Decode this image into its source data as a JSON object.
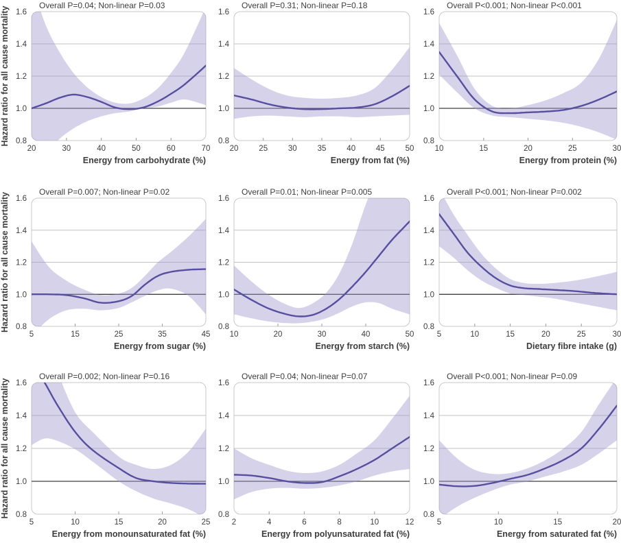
{
  "figure": {
    "y_axis_label": "Hazard ratio for all cause mortality",
    "y_range": [
      0.8,
      1.6
    ],
    "y_tick_labels": [
      "0.8",
      "1.0",
      "1.2",
      "1.4",
      "1.6"
    ],
    "gridlines": [
      1.2,
      1.4
    ],
    "reference_line": 1.0,
    "colors": {
      "band": "#9d94cd",
      "band_opacity": 0.42,
      "line": "#564fa0",
      "grid": "#c2c2c2",
      "reference": "#3f3f3f",
      "frame": "#c8c8c8",
      "tick_mark": "#9a9a9a",
      "text": "#3d3d3d",
      "label_text": "#2f2f2f"
    }
  },
  "chart_data": [
    {
      "type": "line",
      "title": "Overall P=0.04; Non-linear P=0.03",
      "xlabel": "Energy from carbohydrate (%)",
      "ylabel": "Hazard ratio for all cause mortality",
      "xlim": [
        20,
        70
      ],
      "ylim": [
        0.8,
        1.6
      ],
      "x_ticks": [
        20,
        30,
        40,
        50,
        60,
        70
      ],
      "x": [
        20,
        24,
        28,
        32,
        36,
        40,
        44,
        48,
        52,
        56,
        60,
        64,
        70
      ],
      "y": [
        1.0,
        1.03,
        1.065,
        1.085,
        1.07,
        1.04,
        1.005,
        0.995,
        1.005,
        1.04,
        1.09,
        1.15,
        1.265
      ],
      "ci_lower": [
        0.62,
        0.72,
        0.81,
        0.875,
        0.92,
        0.95,
        0.97,
        0.98,
        1.0,
        1.01,
        1.035,
        1.055,
        1.02
      ],
      "ci_upper": [
        1.78,
        1.52,
        1.35,
        1.22,
        1.13,
        1.07,
        1.035,
        1.03,
        1.06,
        1.12,
        1.22,
        1.35,
        1.63
      ]
    },
    {
      "type": "line",
      "title": "Overall P=0.31; Non-linear P=0.18",
      "xlabel": "Energy from fat (%)",
      "xlim": [
        20,
        50
      ],
      "ylim": [
        0.8,
        1.6
      ],
      "x_ticks": [
        20,
        25,
        30,
        35,
        40,
        45,
        50
      ],
      "x": [
        20,
        23,
        26,
        29,
        32,
        35,
        38,
        41,
        44,
        47,
        50
      ],
      "y": [
        1.08,
        1.055,
        1.025,
        1.005,
        0.995,
        0.995,
        1.0,
        1.005,
        1.025,
        1.075,
        1.14
      ],
      "ci_lower": [
        0.935,
        0.95,
        0.955,
        0.95,
        0.945,
        0.95,
        0.95,
        0.945,
        0.95,
        0.955,
        0.96
      ],
      "ci_upper": [
        1.25,
        1.18,
        1.12,
        1.08,
        1.065,
        1.06,
        1.065,
        1.08,
        1.125,
        1.24,
        1.38
      ]
    },
    {
      "type": "line",
      "title": "Overall P<0.001; Non-linear P<0.001",
      "xlabel": "Energy from protein (%)",
      "xlim": [
        10,
        30
      ],
      "ylim": [
        0.8,
        1.6
      ],
      "x_ticks": [
        10,
        15,
        20,
        25,
        30
      ],
      "x": [
        10,
        12,
        14,
        16,
        18,
        20,
        22,
        24,
        26,
        28,
        30
      ],
      "y": [
        1.35,
        1.2,
        1.055,
        0.98,
        0.97,
        0.975,
        0.98,
        0.99,
        1.015,
        1.055,
        1.105
      ],
      "ci_lower": [
        1.21,
        1.1,
        1.0,
        0.955,
        0.945,
        0.935,
        0.925,
        0.91,
        0.885,
        0.85,
        0.805
      ],
      "ci_upper": [
        1.53,
        1.33,
        1.12,
        1.015,
        1.0,
        1.02,
        1.05,
        1.095,
        1.16,
        1.31,
        1.55
      ]
    },
    {
      "type": "line",
      "title": "Overall P=0.007; Non-linear P=0.02",
      "xlabel": "Energy from sugar (%)",
      "ylabel": "Hazard ratio for all cause mortality",
      "xlim": [
        5,
        45
      ],
      "ylim": [
        0.8,
        1.6
      ],
      "x_ticks": [
        5,
        15,
        25,
        35,
        45
      ],
      "x": [
        5,
        9,
        13,
        17,
        21,
        25,
        28,
        31,
        34,
        37,
        41,
        45
      ],
      "y": [
        1.0,
        1.0,
        0.995,
        0.975,
        0.947,
        0.957,
        0.99,
        1.06,
        1.115,
        1.14,
        1.153,
        1.157
      ],
      "ci_lower": [
        0.74,
        0.845,
        0.9,
        0.91,
        0.9,
        0.915,
        0.95,
        0.99,
        1.025,
        1.035,
        0.99,
        0.875
      ],
      "ci_upper": [
        1.33,
        1.17,
        1.085,
        1.03,
        0.995,
        1.005,
        1.04,
        1.115,
        1.2,
        1.265,
        1.36,
        1.47
      ]
    },
    {
      "type": "line",
      "title": "Overall P=0.01; Non-linear P=0.005",
      "xlabel": "Energy from starch (%)",
      "xlim": [
        10,
        50
      ],
      "ylim": [
        0.8,
        1.6
      ],
      "x_ticks": [
        10,
        20,
        30,
        40,
        50
      ],
      "x": [
        10,
        14,
        18,
        22,
        25,
        28,
        31,
        34,
        37,
        40,
        43,
        46,
        50
      ],
      "y": [
        1.03,
        0.965,
        0.91,
        0.875,
        0.862,
        0.872,
        0.91,
        0.97,
        1.05,
        1.14,
        1.24,
        1.34,
        1.455
      ],
      "ci_lower": [
        0.875,
        0.85,
        0.83,
        0.82,
        0.82,
        0.83,
        0.85,
        0.885,
        0.925,
        0.95,
        0.945,
        0.91,
        0.875
      ],
      "ci_upper": [
        1.18,
        1.08,
        0.995,
        0.935,
        0.915,
        0.945,
        1.01,
        1.13,
        1.32,
        1.56,
        1.75,
        1.85,
        1.95
      ]
    },
    {
      "type": "line",
      "title": "Overall P<0.001; Non-linear P=0.002",
      "xlabel": "Dietary fibre intake (g)",
      "xlim": [
        5,
        30
      ],
      "ylim": [
        0.8,
        1.6
      ],
      "x_ticks": [
        5,
        10,
        15,
        20,
        25,
        30
      ],
      "x": [
        5,
        7,
        9,
        11,
        13,
        15,
        17,
        19,
        21,
        24,
        27,
        30
      ],
      "y": [
        1.5,
        1.38,
        1.26,
        1.17,
        1.1,
        1.055,
        1.038,
        1.033,
        1.028,
        1.02,
        1.008,
        1.0
      ],
      "ci_lower": [
        1.3,
        1.23,
        1.15,
        1.085,
        1.04,
        1.005,
        0.995,
        0.985,
        0.975,
        0.95,
        0.925,
        0.9
      ],
      "ci_upper": [
        1.66,
        1.5,
        1.37,
        1.25,
        1.16,
        1.095,
        1.07,
        1.065,
        1.07,
        1.085,
        1.11,
        1.14
      ]
    },
    {
      "type": "line",
      "title": "Overall P=0.002; Non-linear P=0.16",
      "xlabel": "Energy from monounsaturated fat (%)",
      "ylabel": "Hazard ratio for all cause mortality",
      "xlim": [
        5,
        25
      ],
      "ylim": [
        0.8,
        1.6
      ],
      "x_ticks": [
        5,
        10,
        15,
        20,
        25
      ],
      "x": [
        5,
        6.5,
        8,
        10,
        12,
        15,
        17,
        19,
        21,
        23,
        25
      ],
      "y": [
        1.73,
        1.6,
        1.46,
        1.3,
        1.19,
        1.08,
        1.02,
        1.0,
        0.99,
        0.986,
        0.985
      ],
      "ci_lower": [
        1.22,
        1.26,
        1.245,
        1.195,
        1.12,
        1.0,
        0.94,
        0.895,
        0.865,
        0.83,
        0.775
      ],
      "ci_upper": [
        2.05,
        1.88,
        1.66,
        1.42,
        1.3,
        1.15,
        1.1,
        1.075,
        1.1,
        1.18,
        1.32
      ]
    },
    {
      "type": "line",
      "title": "Overall P=0.04; Non-linear P=0.07",
      "xlabel": "Energy from polyunsaturated fat (%)",
      "xlim": [
        2,
        12
      ],
      "ylim": [
        0.8,
        1.6
      ],
      "x_ticks": [
        2,
        4,
        6,
        8,
        10,
        12
      ],
      "x": [
        2,
        3,
        4,
        5,
        6,
        7,
        8,
        9,
        10,
        11,
        12
      ],
      "y": [
        1.04,
        1.035,
        1.02,
        1.0,
        0.99,
        0.995,
        1.03,
        1.075,
        1.13,
        1.2,
        1.27
      ],
      "ci_lower": [
        0.89,
        0.935,
        0.955,
        0.96,
        0.955,
        0.96,
        0.975,
        1.0,
        1.035,
        1.06,
        1.075
      ],
      "ci_upper": [
        1.2,
        1.14,
        1.1,
        1.065,
        1.05,
        1.06,
        1.1,
        1.17,
        1.25,
        1.38,
        1.52
      ]
    },
    {
      "type": "line",
      "title": "Overall P<0.001; Non-linear P=0.09",
      "xlabel": "Energy from saturated fat (%)",
      "xlim": [
        5,
        20
      ],
      "ylim": [
        0.8,
        1.6
      ],
      "x_ticks": [
        5,
        10,
        15,
        20
      ],
      "x": [
        5,
        6.5,
        8,
        9.5,
        11,
        12.5,
        14,
        15.5,
        17,
        18.5,
        20
      ],
      "y": [
        0.98,
        0.97,
        0.972,
        0.99,
        1.015,
        1.04,
        1.08,
        1.13,
        1.2,
        1.32,
        1.46
      ],
      "ci_lower": [
        0.77,
        0.845,
        0.9,
        0.945,
        0.98,
        1.0,
        1.03,
        1.06,
        1.1,
        1.17,
        1.25
      ],
      "ci_upper": [
        1.25,
        1.14,
        1.07,
        1.045,
        1.05,
        1.08,
        1.13,
        1.2,
        1.3,
        1.47,
        1.63
      ]
    }
  ]
}
